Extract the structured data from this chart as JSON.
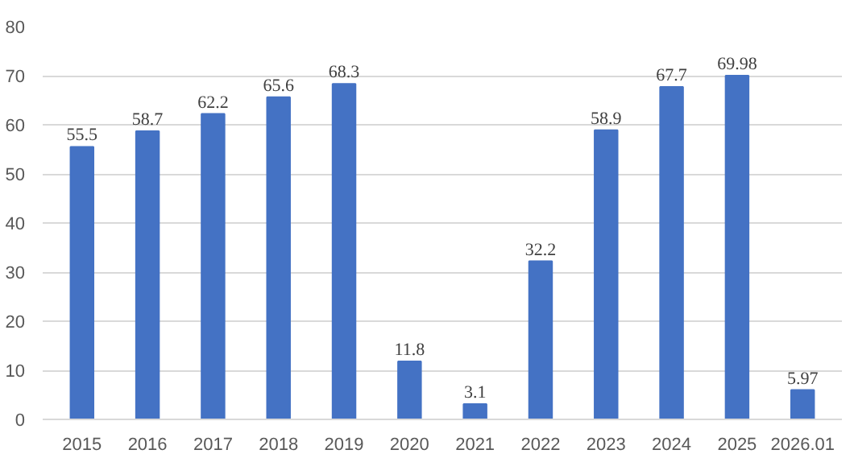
{
  "chart_data": {
    "type": "bar",
    "categories": [
      "2015",
      "2016",
      "2017",
      "2018",
      "2019",
      "2020",
      "2021",
      "2022",
      "2023",
      "2024",
      "2025",
      "2026.01"
    ],
    "values": [
      55.5,
      58.7,
      62.2,
      65.6,
      68.3,
      11.8,
      3.1,
      32.2,
      58.9,
      67.7,
      69.98,
      5.97
    ],
    "color": "#4472c4",
    "ylim": [
      0,
      80
    ],
    "yticks": [
      0,
      10,
      20,
      30,
      40,
      50,
      60,
      70,
      80
    ],
    "grid": "y",
    "data_labels": true
  }
}
